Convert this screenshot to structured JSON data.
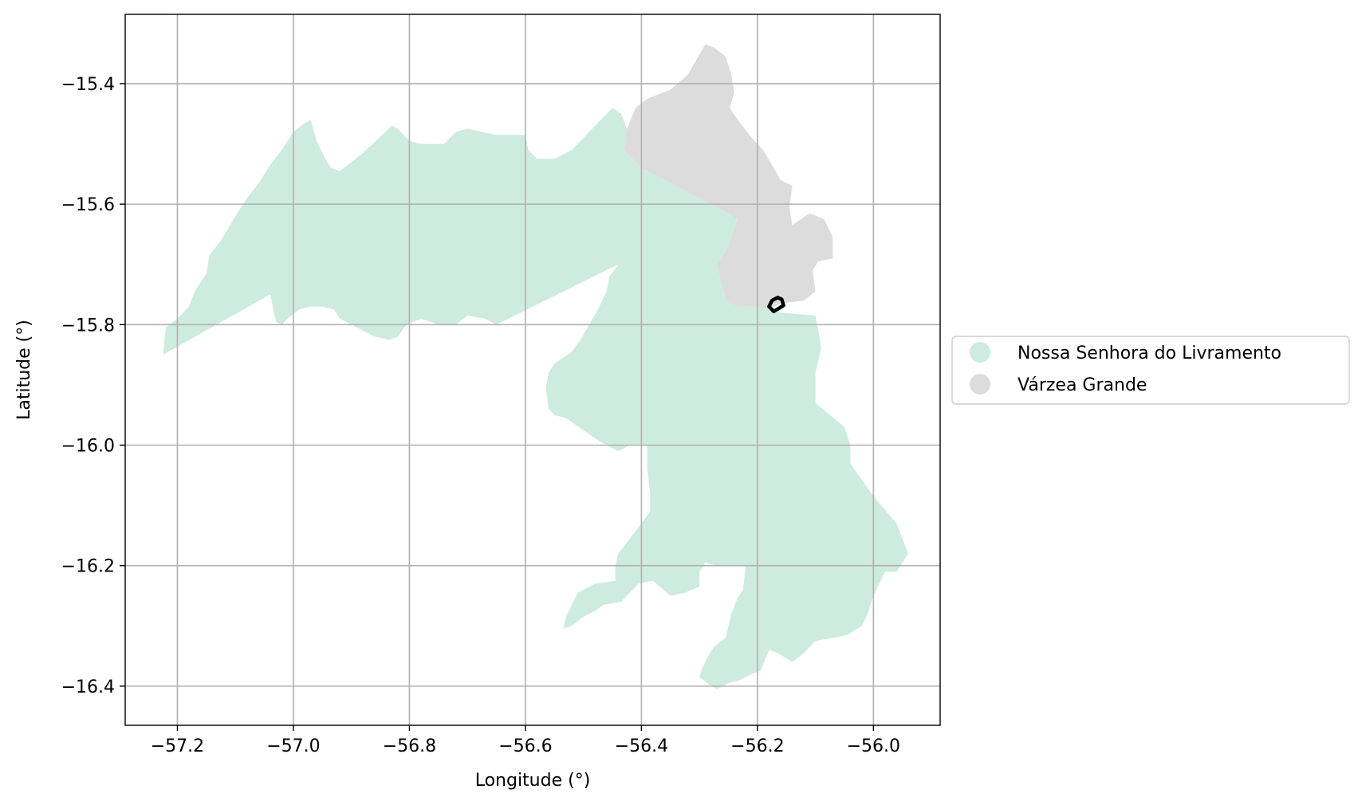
{
  "chart_data": {
    "type": "map",
    "xlabel": "Longitude (°)",
    "ylabel": "Latitude (°)",
    "xlim": [
      -57.29,
      -55.885
    ],
    "ylim": [
      -16.465,
      -15.285
    ],
    "xticks": [
      -57.2,
      -57.0,
      -56.8,
      -56.6,
      -56.4,
      -56.2,
      -56.0
    ],
    "yticks": [
      -15.4,
      -15.6,
      -15.8,
      -16.0,
      -16.2,
      -16.4
    ],
    "xtick_labels": [
      "−57.2",
      "−57.0",
      "−56.8",
      "−56.6",
      "−56.4",
      "−56.2",
      "−56.0"
    ],
    "ytick_labels": [
      "−15.4",
      "−15.6",
      "−15.8",
      "−16.0",
      "−16.2",
      "−16.4"
    ],
    "grid": true,
    "legend_position": "right-outside",
    "legend": [
      {
        "label": "Nossa Senhora do Livramento",
        "color": "#ceebdf"
      },
      {
        "label": "Várzea Grande",
        "color": "#dcdcdc"
      }
    ],
    "regions": [
      {
        "name": "Várzea Grande",
        "color": "#dcdcdc",
        "coords": [
          [
            -56.425,
            -15.475
          ],
          [
            -56.41,
            -15.44
          ],
          [
            -56.39,
            -15.425
          ],
          [
            -56.35,
            -15.41
          ],
          [
            -56.32,
            -15.385
          ],
          [
            -56.305,
            -15.36
          ],
          [
            -56.29,
            -15.335
          ],
          [
            -56.275,
            -15.34
          ],
          [
            -56.255,
            -15.355
          ],
          [
            -56.245,
            -15.385
          ],
          [
            -56.24,
            -15.415
          ],
          [
            -56.248,
            -15.44
          ],
          [
            -56.23,
            -15.465
          ],
          [
            -56.21,
            -15.49
          ],
          [
            -56.19,
            -15.51
          ],
          [
            -56.175,
            -15.535
          ],
          [
            -56.16,
            -15.56
          ],
          [
            -56.14,
            -15.57
          ],
          [
            -56.145,
            -15.605
          ],
          [
            -56.14,
            -15.635
          ],
          [
            -56.11,
            -15.615
          ],
          [
            -56.085,
            -15.625
          ],
          [
            -56.07,
            -15.655
          ],
          [
            -56.07,
            -15.69
          ],
          [
            -56.095,
            -15.695
          ],
          [
            -56.105,
            -15.71
          ],
          [
            -56.1,
            -15.745
          ],
          [
            -56.12,
            -15.76
          ],
          [
            -56.16,
            -15.765
          ],
          [
            -56.18,
            -15.775
          ],
          [
            -56.2,
            -15.77
          ],
          [
            -56.23,
            -15.77
          ],
          [
            -56.25,
            -15.765
          ],
          [
            -56.26,
            -15.74
          ],
          [
            -56.27,
            -15.7
          ],
          [
            -56.25,
            -15.67
          ],
          [
            -56.235,
            -15.625
          ],
          [
            -56.26,
            -15.61
          ],
          [
            -56.3,
            -15.59
          ],
          [
            -56.35,
            -15.565
          ],
          [
            -56.4,
            -15.54
          ],
          [
            -56.43,
            -15.51
          ]
        ]
      },
      {
        "name": "Nossa Senhora do Livramento",
        "color": "#ceebdf",
        "coords": [
          [
            -57.225,
            -15.85
          ],
          [
            -57.22,
            -15.805
          ],
          [
            -57.2,
            -15.79
          ],
          [
            -57.18,
            -15.77
          ],
          [
            -57.17,
            -15.745
          ],
          [
            -57.15,
            -15.715
          ],
          [
            -57.145,
            -15.685
          ],
          [
            -57.125,
            -15.66
          ],
          [
            -57.1,
            -15.62
          ],
          [
            -57.08,
            -15.59
          ],
          [
            -57.06,
            -15.565
          ],
          [
            -57.04,
            -15.535
          ],
          [
            -57.02,
            -15.51
          ],
          [
            -57.0,
            -15.48
          ],
          [
            -56.98,
            -15.465
          ],
          [
            -56.97,
            -15.46
          ],
          [
            -56.96,
            -15.495
          ],
          [
            -56.945,
            -15.525
          ],
          [
            -56.935,
            -15.54
          ],
          [
            -56.92,
            -15.545
          ],
          [
            -56.9,
            -15.53
          ],
          [
            -56.88,
            -15.515
          ],
          [
            -56.83,
            -15.47
          ],
          [
            -56.82,
            -15.475
          ],
          [
            -56.8,
            -15.495
          ],
          [
            -56.78,
            -15.5
          ],
          [
            -56.76,
            -15.5
          ],
          [
            -56.74,
            -15.5
          ],
          [
            -56.72,
            -15.48
          ],
          [
            -56.7,
            -15.475
          ],
          [
            -56.65,
            -15.485
          ],
          [
            -56.6,
            -15.485
          ],
          [
            -56.595,
            -15.51
          ],
          [
            -56.58,
            -15.525
          ],
          [
            -56.55,
            -15.525
          ],
          [
            -56.52,
            -15.51
          ],
          [
            -56.5,
            -15.49
          ],
          [
            -56.47,
            -15.46
          ],
          [
            -56.45,
            -15.44
          ],
          [
            -56.435,
            -15.45
          ],
          [
            -56.425,
            -15.475
          ],
          [
            -56.43,
            -15.51
          ],
          [
            -56.4,
            -15.54
          ],
          [
            -56.35,
            -15.565
          ],
          [
            -56.3,
            -15.59
          ],
          [
            -56.26,
            -15.61
          ],
          [
            -56.235,
            -15.625
          ],
          [
            -56.25,
            -15.67
          ],
          [
            -56.27,
            -15.7
          ],
          [
            -56.26,
            -15.74
          ],
          [
            -56.25,
            -15.765
          ],
          [
            -56.23,
            -15.77
          ],
          [
            -56.2,
            -15.77
          ],
          [
            -56.18,
            -15.775
          ],
          [
            -56.16,
            -15.78
          ],
          [
            -56.1,
            -15.785
          ],
          [
            -56.095,
            -15.81
          ],
          [
            -56.09,
            -15.84
          ],
          [
            -56.1,
            -15.88
          ],
          [
            -56.1,
            -15.93
          ],
          [
            -56.05,
            -15.97
          ],
          [
            -56.04,
            -16.0
          ],
          [
            -56.04,
            -16.03
          ],
          [
            -56.0,
            -16.085
          ],
          [
            -55.96,
            -16.13
          ],
          [
            -55.94,
            -16.18
          ],
          [
            -55.96,
            -16.21
          ],
          [
            -55.98,
            -16.21
          ],
          [
            -56.0,
            -16.25
          ],
          [
            -56.01,
            -16.28
          ],
          [
            -56.02,
            -16.3
          ],
          [
            -56.045,
            -16.315
          ],
          [
            -56.07,
            -16.32
          ],
          [
            -56.1,
            -16.325
          ],
          [
            -56.12,
            -16.345
          ],
          [
            -56.14,
            -16.36
          ],
          [
            -56.165,
            -16.345
          ],
          [
            -56.18,
            -16.34
          ],
          [
            -56.195,
            -16.375
          ],
          [
            -56.21,
            -16.38
          ],
          [
            -56.23,
            -16.39
          ],
          [
            -56.25,
            -16.395
          ],
          [
            -56.27,
            -16.405
          ],
          [
            -56.28,
            -16.4
          ],
          [
            -56.3,
            -16.385
          ],
          [
            -56.295,
            -16.37
          ],
          [
            -56.285,
            -16.35
          ],
          [
            -56.275,
            -16.335
          ],
          [
            -56.255,
            -16.32
          ],
          [
            -56.245,
            -16.28
          ],
          [
            -56.235,
            -16.255
          ],
          [
            -56.225,
            -16.24
          ],
          [
            -56.22,
            -16.2
          ],
          [
            -56.27,
            -16.2
          ],
          [
            -56.29,
            -16.195
          ],
          [
            -56.3,
            -16.21
          ],
          [
            -56.3,
            -16.235
          ],
          [
            -56.325,
            -16.245
          ],
          [
            -56.35,
            -16.25
          ],
          [
            -56.38,
            -16.225
          ],
          [
            -56.405,
            -16.23
          ],
          [
            -56.42,
            -16.245
          ],
          [
            -56.435,
            -16.26
          ],
          [
            -56.465,
            -16.265
          ],
          [
            -56.48,
            -16.275
          ],
          [
            -56.5,
            -16.285
          ],
          [
            -56.52,
            -16.3
          ],
          [
            -56.535,
            -16.305
          ],
          [
            -56.53,
            -16.285
          ],
          [
            -56.52,
            -16.265
          ],
          [
            -56.51,
            -16.245
          ],
          [
            -56.48,
            -16.23
          ],
          [
            -56.445,
            -16.225
          ],
          [
            -56.445,
            -16.2
          ],
          [
            -56.44,
            -16.18
          ],
          [
            -56.42,
            -16.155
          ],
          [
            -56.4,
            -16.13
          ],
          [
            -56.385,
            -16.11
          ],
          [
            -56.385,
            -16.08
          ],
          [
            -56.39,
            -16.04
          ],
          [
            -56.39,
            -16.0
          ],
          [
            -56.42,
            -16.0
          ],
          [
            -56.44,
            -16.01
          ],
          [
            -56.47,
            -15.995
          ],
          [
            -56.5,
            -15.975
          ],
          [
            -56.53,
            -15.955
          ],
          [
            -56.55,
            -15.95
          ],
          [
            -56.56,
            -15.94
          ],
          [
            -56.565,
            -15.905
          ],
          [
            -56.56,
            -15.88
          ],
          [
            -56.55,
            -15.865
          ],
          [
            -56.52,
            -15.845
          ],
          [
            -56.505,
            -15.825
          ],
          [
            -56.49,
            -15.8
          ],
          [
            -56.475,
            -15.775
          ],
          [
            -56.46,
            -15.745
          ],
          [
            -56.455,
            -15.72
          ],
          [
            -56.44,
            -15.7
          ],
          [
            -56.65,
            -15.8
          ],
          [
            -56.67,
            -15.79
          ],
          [
            -56.7,
            -15.785
          ],
          [
            -56.72,
            -15.8
          ],
          [
            -56.75,
            -15.8
          ],
          [
            -56.78,
            -15.79
          ],
          [
            -56.805,
            -15.8
          ],
          [
            -56.82,
            -15.82
          ],
          [
            -56.835,
            -15.825
          ],
          [
            -56.86,
            -15.82
          ],
          [
            -56.88,
            -15.81
          ],
          [
            -56.9,
            -15.8
          ],
          [
            -56.92,
            -15.79
          ],
          [
            -56.93,
            -15.775
          ],
          [
            -56.95,
            -15.77
          ],
          [
            -56.97,
            -15.77
          ],
          [
            -56.99,
            -15.775
          ],
          [
            -57.01,
            -15.79
          ],
          [
            -57.02,
            -15.8
          ],
          [
            -57.03,
            -15.795
          ],
          [
            -57.04,
            -15.75
          ]
        ]
      }
    ],
    "highlight": {
      "color": "#000000",
      "coords": [
        [
          -56.18,
          -15.77
        ],
        [
          -56.175,
          -15.76
        ],
        [
          -56.165,
          -15.755
        ],
        [
          -56.158,
          -15.758
        ],
        [
          -56.155,
          -15.768
        ],
        [
          -56.163,
          -15.773
        ],
        [
          -56.172,
          -15.778
        ]
      ]
    }
  }
}
